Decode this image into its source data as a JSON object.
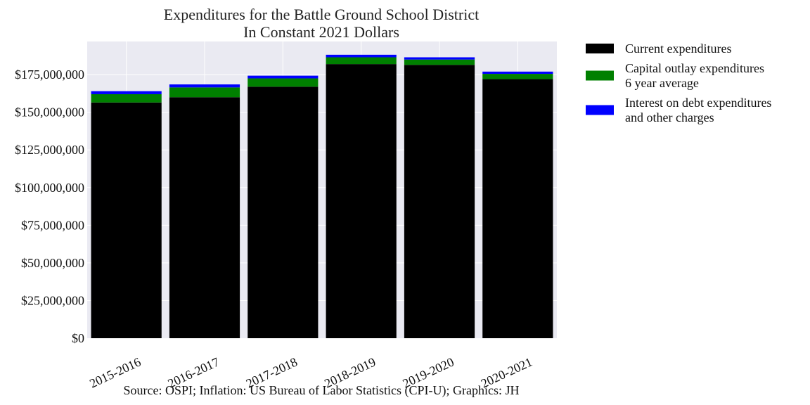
{
  "chart_data": {
    "type": "bar",
    "stacked": true,
    "title": "Expenditures for the Battle Ground School District",
    "subtitle": "In Constant 2021 Dollars",
    "categories": [
      "2015-2016",
      "2016-2017",
      "2017-2018",
      "2018-2019",
      "2019-2020",
      "2020-2021"
    ],
    "series": [
      {
        "name": "Current expenditures",
        "color": "#000000",
        "values": [
          156500000,
          160000000,
          167000000,
          182000000,
          181500000,
          172000000
        ]
      },
      {
        "name": "Capital outlay expenditures 6 year average",
        "name_lines": [
          "Capital outlay expenditures",
          "6 year average"
        ],
        "color": "#008000",
        "values": [
          5500000,
          6500000,
          5500000,
          4500000,
          3500000,
          3500000
        ]
      },
      {
        "name": "Interest on debt expenditures and other charges",
        "name_lines": [
          "Interest on debt expenditures",
          "and other charges"
        ],
        "color": "#0000ff",
        "values": [
          2000000,
          2000000,
          1800000,
          1700000,
          1500000,
          1500000
        ]
      }
    ],
    "yticks": [
      0,
      25000000,
      50000000,
      75000000,
      100000000,
      125000000,
      150000000,
      175000000
    ],
    "ytick_labels": [
      "$0",
      "$25,000,000",
      "$50,000,000",
      "$75,000,000",
      "$100,000,000",
      "$125,000,000",
      "$150,000,000",
      "$175,000,000"
    ],
    "ylim": [
      0,
      197000000
    ],
    "grid": true,
    "legend_position": "outside-right-top",
    "plot_background": "#eaeaf2",
    "source": "Source: OSPI; Inflation: US Bureau of Labor Statistics (CPI-U); Graphics: JH"
  }
}
